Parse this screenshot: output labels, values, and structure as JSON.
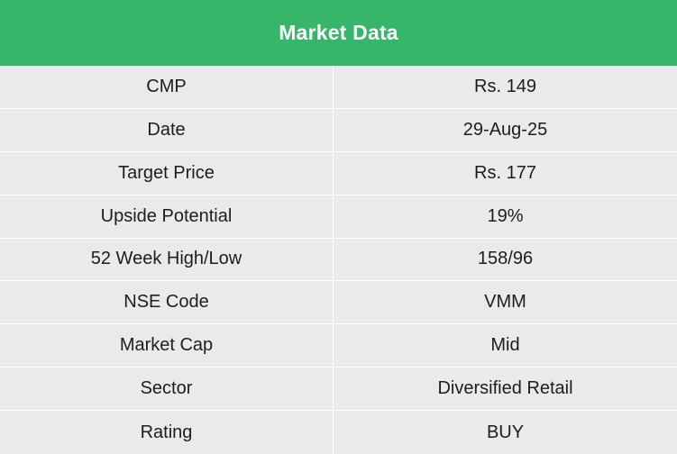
{
  "table": {
    "title": "Market Data",
    "rows": [
      {
        "label": "CMP",
        "value": "Rs. 149"
      },
      {
        "label": "Date",
        "value": "29-Aug-25"
      },
      {
        "label": "Target Price",
        "value": "Rs. 177"
      },
      {
        "label": "Upside Potential",
        "value": "19%"
      },
      {
        "label": "52 Week High/Low",
        "value": "158/96"
      },
      {
        "label": "NSE Code",
        "value": "VMM"
      },
      {
        "label": "Market Cap",
        "value": "Mid"
      },
      {
        "label": "Sector",
        "value": "Diversified Retail"
      },
      {
        "label": "Rating",
        "value": "BUY"
      }
    ]
  },
  "colors": {
    "header_bg": "#37b56a",
    "row_bg": "#e9eaeb",
    "header_text": "#ffffff",
    "cell_text": "#1d1d1d"
  }
}
